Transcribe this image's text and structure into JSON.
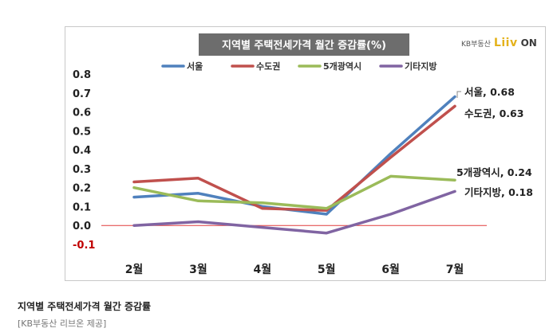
{
  "caption": {
    "title": "지역별 주택전세가격 월간 증감률",
    "source": "[KB부동산 리브온 제공]"
  },
  "brand": {
    "kb_text": "KB부동산",
    "liiv_text": "Liiv",
    "on_text": "ON"
  },
  "chart_data": {
    "type": "line",
    "title": "지역별 주택전세가격 월간 증감률(%)",
    "categories": [
      "2월",
      "3월",
      "4월",
      "5월",
      "6월",
      "7월"
    ],
    "ylim": [
      -0.1,
      0.8
    ],
    "yticks": [
      "0.8",
      "0.7",
      "0.6",
      "0.5",
      "0.4",
      "0.3",
      "0.2",
      "0.1",
      "0.0",
      "-0.1"
    ],
    "legend_position": "top",
    "series": [
      {
        "name": "서울",
        "color": "#4f81bd",
        "values": [
          0.15,
          0.17,
          0.1,
          0.06,
          0.38,
          0.68
        ],
        "end_label": "서울, 0.68"
      },
      {
        "name": "수도권",
        "color": "#c0504d",
        "values": [
          0.23,
          0.25,
          0.09,
          0.08,
          0.36,
          0.63
        ],
        "end_label": "수도권, 0.63"
      },
      {
        "name": "5개광역시",
        "color": "#9bbb59",
        "values": [
          0.2,
          0.13,
          0.12,
          0.09,
          0.26,
          0.24
        ],
        "end_label": "5개광역시, 0.24"
      },
      {
        "name": "기타지방",
        "color": "#8064a2",
        "values": [
          0.0,
          0.02,
          -0.01,
          -0.04,
          0.06,
          0.18
        ],
        "end_label": "기타지방, 0.18"
      }
    ],
    "zero_line_color": "#e03c3c",
    "title_bg_color": "#6d6d6d"
  }
}
